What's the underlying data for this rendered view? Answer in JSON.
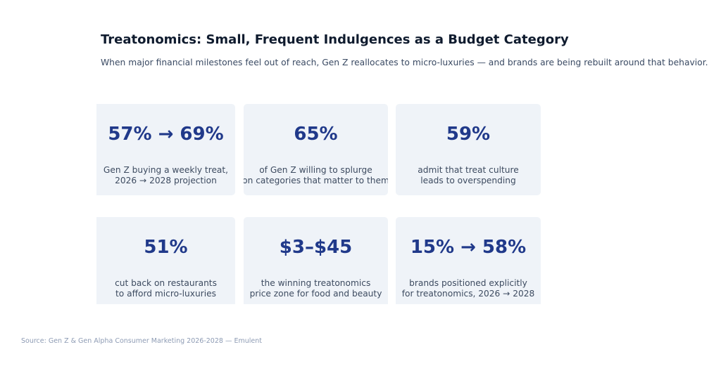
{
  "chart_data": {
    "type": "table",
    "title": "Treatonomics: Small, Frequent Indulgences as a Budget Category",
    "subtitle": "When major financial milestones feel out of reach, Gen Z reallocates to micro-luxuries — and brands are being rebuilt around that behavior.",
    "cards": [
      {
        "value": "57% → 69%",
        "label": "Gen Z buying a weekly treat,\n2026 → 2028 projection"
      },
      {
        "value": "65%",
        "label": "of Gen Z willing to splurge\non categories that matter to them"
      },
      {
        "value": "59%",
        "label": "admit that treat culture\nleads to overspending"
      },
      {
        "value": "51%",
        "label": "cut back on restaurants\nto afford micro-luxuries"
      },
      {
        "value": "$3–$45",
        "label": "the winning treatonomics\nprice zone for food and beauty"
      },
      {
        "value": "15% → 58%",
        "label": "brands positioned explicitly\nfor treatonomics, 2026 → 2028"
      }
    ],
    "source": "Source: Gen Z & Gen Alpha Consumer Marketing 2026-2028 — Emulent"
  },
  "colors": {
    "title": "#0f1b2e",
    "subtitle": "#3a4a63",
    "card_background": "#eff3f8",
    "value": "#20398a",
    "label": "#3d4b60",
    "source": "#8d9bb4"
  }
}
